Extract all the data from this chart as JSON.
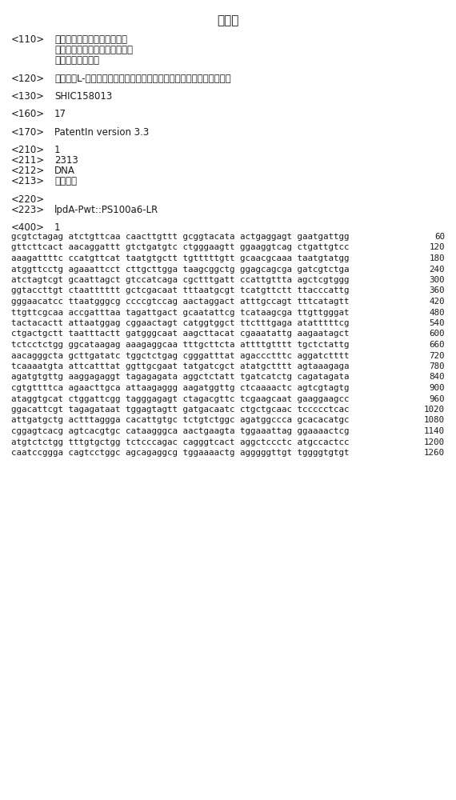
{
  "background_color": "#ffffff",
  "text_color": "#1a1a1a",
  "title": "序列表",
  "sections": [
    {
      "tag": "<110>",
      "content": [
        "中粮营养健康研究院有限公司",
        "中粮生化能源（龙江）有限公司",
        "中粮集团有限公司"
      ]
    },
    {
      "tag": "<120>",
      "content": [
        "制备重组L-谷氨酸生产菌株的方法、由该方法制备的菌株及其使用方法"
      ]
    },
    {
      "tag": "<130>",
      "content": [
        "SHIC158013"
      ]
    },
    {
      "tag": "<160>",
      "content": [
        "17"
      ]
    },
    {
      "tag": "<170>",
      "content": [
        "PatentIn version 3.3"
      ]
    },
    {
      "tag": "<210>",
      "content": [
        "1"
      ]
    },
    {
      "tag": "<211>",
      "content": [
        "2313"
      ]
    },
    {
      "tag": "<212>",
      "content": [
        "DNA"
      ]
    },
    {
      "tag": "<213>",
      "content": [
        "人工序列"
      ]
    },
    {
      "tag": "<220>",
      "content": [
        ""
      ]
    },
    {
      "tag": "<223>",
      "content": [
        "lpdA-Pwt::PS100a6-LR"
      ]
    },
    {
      "tag": "<400>",
      "content": [
        "1"
      ]
    }
  ],
  "seq_lines": [
    {
      "seq": "gcgtctagag atctgttcaa caacttgttt gcggtacata actgaggagt gaatgattgg",
      "num": "60"
    },
    {
      "seq": "gttcttcact aacaggattt gtctgatgtc ctgggaagtt ggaaggtcag ctgattgtcc",
      "num": "120"
    },
    {
      "seq": "aaagattttc ccatgttcat taatgtgctt tgtttttgtt gcaacgcaaa taatgtatgg",
      "num": "180"
    },
    {
      "seq": "atggttcctg agaaattcct cttgcttgga taagcggctg ggagcagcga gatcgtctga",
      "num": "240"
    },
    {
      "seq": "atctagtcgt gcaattagct gtccatcaga cgctttgatt ccattgttta agctcgtggg",
      "num": "300"
    },
    {
      "seq": "ggtaccttgt ctaatttttt gctcgacaat tttaatgcgt tcatgttctt ttacccattg",
      "num": "360"
    },
    {
      "seq": "gggaacatcc ttaatgggcg ccccgtccag aactaggact atttgccagt tttcatagtt",
      "num": "420"
    },
    {
      "seq": "ttgttcgcaa accgatttaa tagattgact gcaatattcg tcataagcga ttgttgggat",
      "num": "480"
    },
    {
      "seq": "tactacactt attaatggag cggaactagt catggtggct ttctttgaga atatttttcg",
      "num": "540"
    },
    {
      "seq": "ctgactgctt taatttactt gatgggcaat aagcttacat cgaaatattg aagaatagct",
      "num": "600"
    },
    {
      "seq": "tctcctctgg ggcataagag aaagaggcaa tttgcttcta attttgtttt tgctctattg",
      "num": "660"
    },
    {
      "seq": "aacagggcta gcttgatatc tggctctgag cgggatttat agaccctttc aggatctttt",
      "num": "720"
    },
    {
      "seq": "tcaaaatgta attcatttat ggttgcgaat tatgatcgct atatgctttt agtaaagaga",
      "num": "780"
    },
    {
      "seq": "agatgtgttg aaggagaggt tagagagata aggctctatt tgatcatctg cagatagata",
      "num": "840"
    },
    {
      "seq": "cgtgttttca agaacttgca attaagaggg aagatggttg ctcaaaactc agtcgtagtg",
      "num": "900"
    },
    {
      "seq": "ataggtgcat ctggattcgg tagggagagt ctagacgttc tcgaagcaat gaaggaagcc",
      "num": "960"
    },
    {
      "seq": "ggacattcgt tagagataat tggagtagtt gatgacaatc ctgctgcaac tccccctcac",
      "num": "1020"
    },
    {
      "seq": "attgatgctg actttaggga cacattgtgc tctgtctggc agatggccca gcacacatgc",
      "num": "1080"
    },
    {
      "seq": "cggagtcacg agtcacgtgc cataagggca aactgaagta tggaaattag ggaaaactcg",
      "num": "1140"
    },
    {
      "seq": "atgtctctgg tttgtgctgg tctcccagac cagggtcact aggctccctc atgccactcc",
      "num": "1200"
    },
    {
      "seq": "caatccggga cagtcctggc agcagaggcg tggaaaactg agggggttgt tggggtgtgt",
      "num": "1260"
    }
  ]
}
